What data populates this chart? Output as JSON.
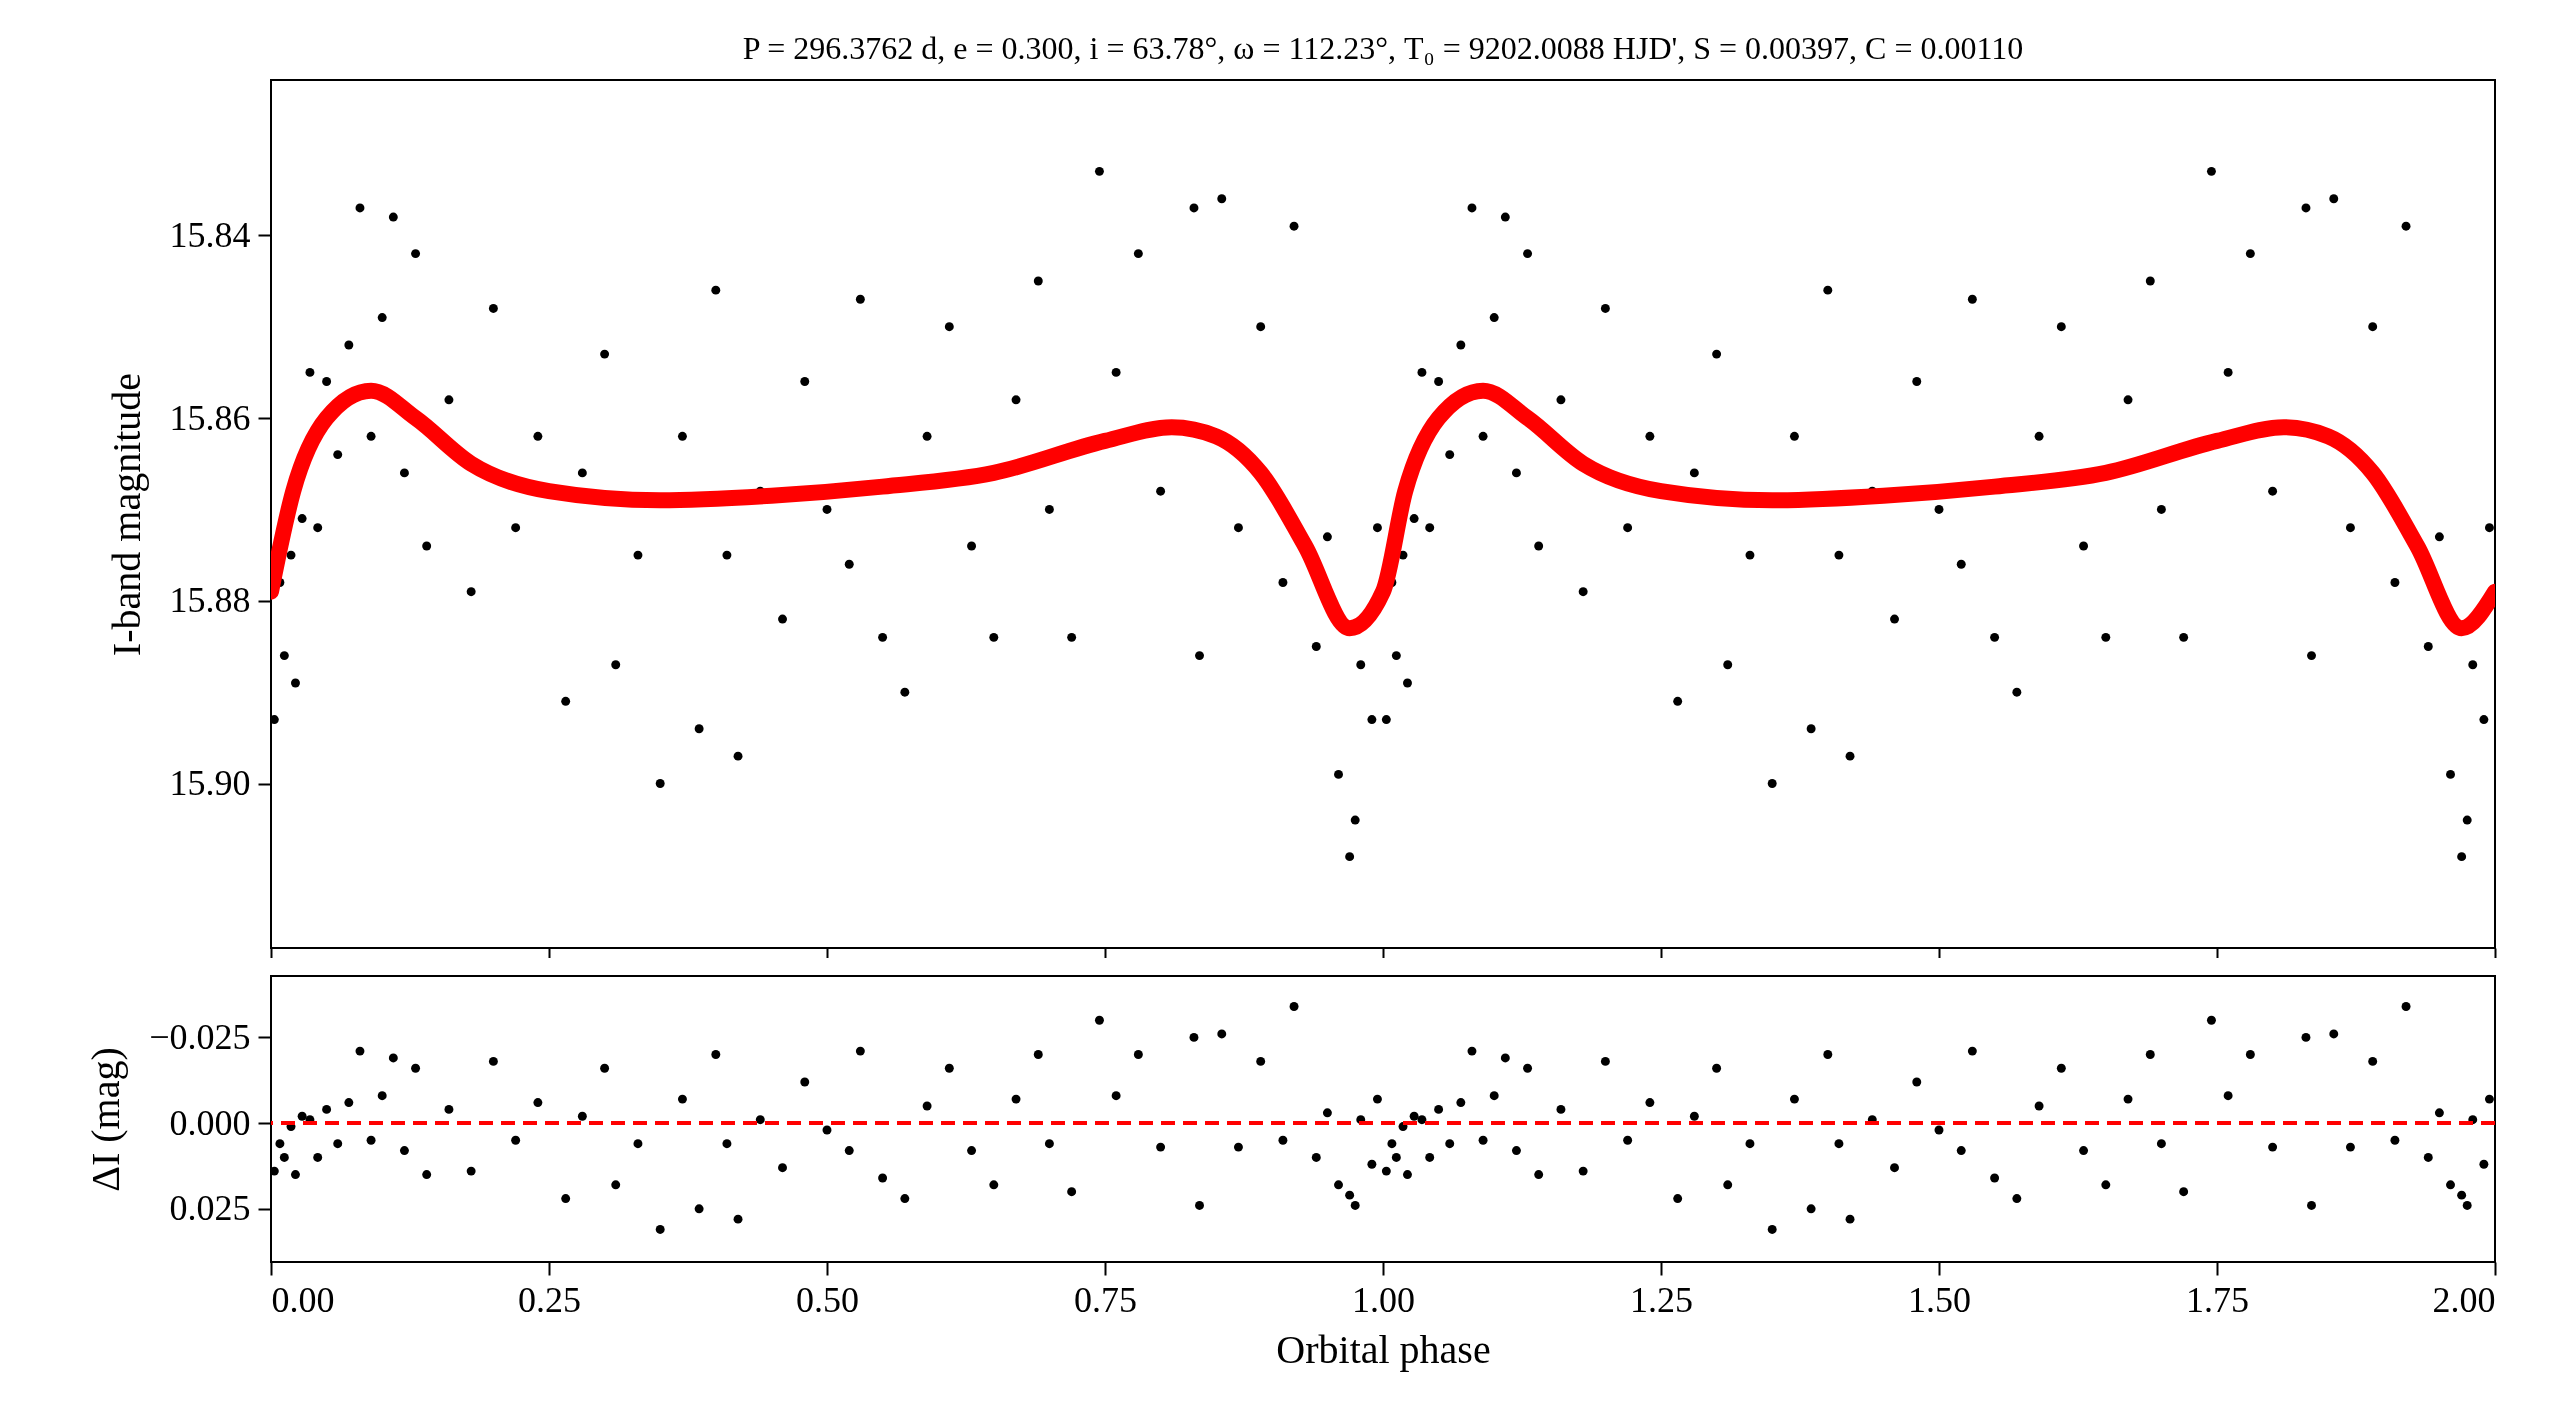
{
  "chart_data": [
    {
      "type": "scatter",
      "title": "P = 296.3762 d, e = 0.300, i = 63.78°, ω = 112.23°, T₀ = 9202.0088 HJD', S = 0.00397, C = 0.00110",
      "ylabel": "I-band magnitude",
      "tick_labels": "y",
      "xlim": [
        0,
        2
      ],
      "xticks": [
        {
          "value": 0,
          "label": null
        },
        {
          "value": 0.25,
          "label": null
        },
        {
          "value": 0.5,
          "label": null
        },
        {
          "value": 0.75,
          "label": null
        },
        {
          "value": 1,
          "label": null
        },
        {
          "value": 1.25,
          "label": null
        },
        {
          "value": 1.5,
          "label": null
        },
        {
          "value": 1.75,
          "label": null
        },
        {
          "value": 2,
          "label": null
        }
      ],
      "ylim": [
        15.918,
        15.823
      ],
      "yticks": [
        {
          "value": 15.84,
          "label": "15.84"
        },
        {
          "value": 15.86,
          "label": "15.86"
        },
        {
          "value": 15.88,
          "label": "15.88"
        },
        {
          "value": 15.9,
          "label": "15.90"
        }
      ],
      "series": [
        {
          "marker": "circle",
          "color": "#000000",
          "x": [
            0.003,
            0.008,
            0.012,
            0.018,
            0.022,
            0.028,
            0.035,
            0.042,
            0.05,
            0.06,
            0.07,
            0.08,
            0.09,
            0.1,
            0.11,
            0.12,
            0.13,
            0.14,
            0.16,
            0.18,
            0.2,
            0.22,
            0.24,
            0.265,
            0.28,
            0.3,
            0.31,
            0.33,
            0.35,
            0.37,
            0.385,
            0.4,
            0.41,
            0.42,
            0.44,
            0.46,
            0.48,
            0.5,
            0.52,
            0.53,
            0.55,
            0.57,
            0.59,
            0.61,
            0.63,
            0.65,
            0.67,
            0.69,
            0.7,
            0.72,
            0.745,
            0.76,
            0.78,
            0.8,
            0.83,
            0.835,
            0.855,
            0.87,
            0.89,
            0.91,
            0.92,
            0.94,
            0.95,
            0.96,
            0.97,
            0.975,
            0.98,
            0.99,
            0.995,
            1.003,
            1.008,
            1.012,
            1.018,
            1.022,
            1.028,
            1.035,
            1.042,
            1.05,
            1.06,
            1.07,
            1.08,
            1.09,
            1.1,
            1.11,
            1.12,
            1.13,
            1.14,
            1.16,
            1.18,
            1.2,
            1.22,
            1.24,
            1.265,
            1.28,
            1.3,
            1.31,
            1.33,
            1.35,
            1.37,
            1.385,
            1.4,
            1.41,
            1.42,
            1.44,
            1.46,
            1.48,
            1.5,
            1.52,
            1.53,
            1.55,
            1.57,
            1.59,
            1.61,
            1.63,
            1.65,
            1.67,
            1.69,
            1.7,
            1.72,
            1.745,
            1.76,
            1.78,
            1.8,
            1.83,
            1.835,
            1.855,
            1.87,
            1.89,
            1.91,
            1.92,
            1.94,
            1.95,
            1.96,
            1.97,
            1.975,
            1.98,
            1.99,
            1.995
          ],
          "values": [
            15.893,
            15.878,
            15.886,
            15.875,
            15.889,
            15.871,
            15.855,
            15.872,
            15.856,
            15.864,
            15.852,
            15.837,
            15.862,
            15.849,
            15.838,
            15.866,
            15.842,
            15.874,
            15.858,
            15.879,
            15.848,
            15.872,
            15.862,
            15.891,
            15.866,
            15.853,
            15.887,
            15.875,
            15.9,
            15.862,
            15.894,
            15.846,
            15.875,
            15.897,
            15.868,
            15.882,
            15.856,
            15.87,
            15.876,
            15.847,
            15.884,
            15.89,
            15.862,
            15.85,
            15.874,
            15.884,
            15.858,
            15.845,
            15.87,
            15.884,
            15.833,
            15.855,
            15.842,
            15.868,
            15.837,
            15.886,
            15.836,
            15.872,
            15.85,
            15.878,
            15.839,
            15.885,
            15.873,
            15.899,
            15.908,
            15.904,
            15.887,
            15.893,
            15.872,
            15.893,
            15.878,
            15.886,
            15.875,
            15.889,
            15.871,
            15.855,
            15.872,
            15.856,
            15.864,
            15.852,
            15.837,
            15.862,
            15.849,
            15.838,
            15.866,
            15.842,
            15.874,
            15.858,
            15.879,
            15.848,
            15.872,
            15.862,
            15.891,
            15.866,
            15.853,
            15.887,
            15.875,
            15.9,
            15.862,
            15.894,
            15.846,
            15.875,
            15.897,
            15.868,
            15.882,
            15.856,
            15.87,
            15.876,
            15.847,
            15.884,
            15.89,
            15.862,
            15.85,
            15.874,
            15.884,
            15.858,
            15.845,
            15.87,
            15.884,
            15.833,
            15.855,
            15.842,
            15.868,
            15.837,
            15.886,
            15.836,
            15.872,
            15.85,
            15.878,
            15.839,
            15.885,
            15.873,
            15.899,
            15.908,
            15.904,
            15.887,
            15.893,
            15.872
          ]
        },
        {
          "type": "line",
          "marker": "none",
          "color": "#ff0000",
          "x": [
            0,
            0.02,
            0.05,
            0.09,
            0.13,
            0.18,
            0.25,
            0.35,
            0.45,
            0.55,
            0.65,
            0.75,
            0.81,
            0.85,
            0.89,
            0.93,
            0.97,
            1,
            1.02,
            1.05,
            1.09,
            1.13,
            1.18,
            1.25,
            1.35,
            1.45,
            1.55,
            1.65,
            1.75,
            1.81,
            1.85,
            1.89,
            1.93,
            1.97,
            2
          ],
          "values": [
            15.879,
            15.868,
            15.86,
            15.857,
            15.86,
            15.865,
            15.868,
            15.869,
            15.8685,
            15.8675,
            15.866,
            15.8625,
            15.861,
            15.862,
            15.866,
            15.874,
            15.883,
            15.879,
            15.868,
            15.86,
            15.857,
            15.86,
            15.865,
            15.868,
            15.869,
            15.8685,
            15.8675,
            15.866,
            15.8625,
            15.861,
            15.862,
            15.866,
            15.874,
            15.883,
            15.879
          ]
        }
      ]
    },
    {
      "type": "scatter",
      "xlabel": "Orbital phase",
      "ylabel": "ΔI (mag)",
      "xlim": [
        0,
        2
      ],
      "xticks": [
        {
          "value": 0,
          "label": "0.00"
        },
        {
          "value": 0.25,
          "label": "0.25"
        },
        {
          "value": 0.5,
          "label": "0.50"
        },
        {
          "value": 0.75,
          "label": "0.75"
        },
        {
          "value": 1,
          "label": "1.00"
        },
        {
          "value": 1.25,
          "label": "1.25"
        },
        {
          "value": 1.5,
          "label": "1.50"
        },
        {
          "value": 1.75,
          "label": "1.75"
        },
        {
          "value": 2,
          "label": "2.00"
        }
      ],
      "ylim": [
        0.0405,
        -0.0429
      ],
      "yticks": [
        {
          "value": -0.025,
          "label": "−0.025"
        },
        {
          "value": 0,
          "label": "0.000"
        },
        {
          "value": 0.025,
          "label": "0.025"
        }
      ],
      "ref_lines": [
        {
          "axis": "y",
          "value": 0,
          "color": "#ff0000",
          "line_style": "dashed"
        }
      ],
      "series": [
        {
          "marker": "circle",
          "color": "#000000",
          "x": [
            0.003,
            0.008,
            0.012,
            0.018,
            0.022,
            0.028,
            0.035,
            0.042,
            0.05,
            0.06,
            0.07,
            0.08,
            0.09,
            0.1,
            0.11,
            0.12,
            0.13,
            0.14,
            0.16,
            0.18,
            0.2,
            0.22,
            0.24,
            0.265,
            0.28,
            0.3,
            0.31,
            0.33,
            0.35,
            0.37,
            0.385,
            0.4,
            0.41,
            0.42,
            0.44,
            0.46,
            0.48,
            0.5,
            0.52,
            0.53,
            0.55,
            0.57,
            0.59,
            0.61,
            0.63,
            0.65,
            0.67,
            0.69,
            0.7,
            0.72,
            0.745,
            0.76,
            0.78,
            0.8,
            0.83,
            0.835,
            0.855,
            0.87,
            0.89,
            0.91,
            0.92,
            0.94,
            0.95,
            0.96,
            0.97,
            0.975,
            0.98,
            0.99,
            0.995,
            1.003,
            1.008,
            1.012,
            1.018,
            1.022,
            1.028,
            1.035,
            1.042,
            1.05,
            1.06,
            1.07,
            1.08,
            1.09,
            1.1,
            1.11,
            1.12,
            1.13,
            1.14,
            1.16,
            1.18,
            1.2,
            1.22,
            1.24,
            1.265,
            1.28,
            1.3,
            1.31,
            1.33,
            1.35,
            1.37,
            1.385,
            1.4,
            1.41,
            1.42,
            1.44,
            1.46,
            1.48,
            1.5,
            1.52,
            1.53,
            1.55,
            1.57,
            1.59,
            1.61,
            1.63,
            1.65,
            1.67,
            1.69,
            1.7,
            1.72,
            1.745,
            1.76,
            1.78,
            1.8,
            1.83,
            1.835,
            1.855,
            1.87,
            1.89,
            1.91,
            1.92,
            1.94,
            1.95,
            1.96,
            1.97,
            1.975,
            1.98,
            1.99,
            1.995
          ],
          "values": [
            0.014,
            0.006,
            0.01,
            0.001,
            0.015,
            -0.002,
            -0.001,
            0.01,
            -0.004,
            0.006,
            -0.006,
            -0.021,
            0.005,
            -0.008,
            -0.019,
            0.008,
            -0.016,
            0.015,
            -0.004,
            0.014,
            -0.018,
            0.005,
            -0.006,
            0.022,
            -0.002,
            -0.016,
            0.018,
            0.006,
            0.031,
            -0.007,
            0.025,
            -0.02,
            0.006,
            0.028,
            -0.001,
            0.013,
            -0.012,
            0.002,
            0.008,
            -0.021,
            0.016,
            0.022,
            -0.005,
            -0.016,
            0.008,
            0.018,
            -0.007,
            -0.02,
            0.006,
            0.02,
            -0.03,
            -0.008,
            -0.02,
            0.007,
            -0.025,
            0.024,
            -0.026,
            0.007,
            -0.018,
            0.005,
            -0.034,
            0.01,
            -0.003,
            0.018,
            0.021,
            0.024,
            -0.001,
            0.012,
            -0.007,
            0.014,
            0.006,
            0.01,
            0.001,
            0.015,
            -0.002,
            -0.001,
            0.01,
            -0.004,
            0.006,
            -0.006,
            -0.021,
            0.005,
            -0.008,
            -0.019,
            0.008,
            -0.016,
            0.015,
            -0.004,
            0.014,
            -0.018,
            0.005,
            -0.006,
            0.022,
            -0.002,
            -0.016,
            0.018,
            0.006,
            0.031,
            -0.007,
            0.025,
            -0.02,
            0.006,
            0.028,
            -0.001,
            0.013,
            -0.012,
            0.002,
            0.008,
            -0.021,
            0.016,
            0.022,
            -0.005,
            -0.016,
            0.008,
            0.018,
            -0.007,
            -0.02,
            0.006,
            0.02,
            -0.03,
            -0.008,
            -0.02,
            0.007,
            -0.025,
            0.024,
            -0.026,
            0.007,
            -0.018,
            0.005,
            -0.034,
            0.01,
            -0.003,
            0.018,
            0.021,
            0.024,
            -0.001,
            0.012,
            -0.007
          ]
        }
      ]
    }
  ]
}
